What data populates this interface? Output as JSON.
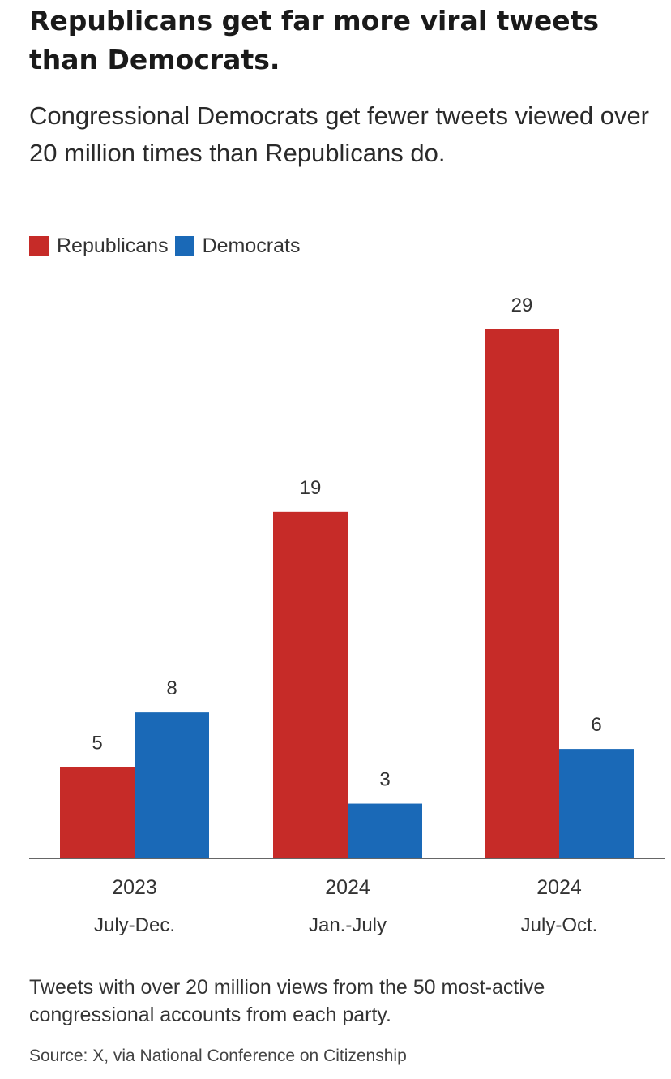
{
  "chart_data": {
    "type": "bar",
    "title": "Republicans get far more viral tweets than Democrats.",
    "subtitle": "Congressional Democrats get fewer tweets viewed over 20 million times than Republicans do.",
    "categories": [
      {
        "year": "2023",
        "period": "July-Dec."
      },
      {
        "year": "2024",
        "period": "Jan.-July"
      },
      {
        "year": "2024",
        "period": "July-Oct."
      }
    ],
    "series": [
      {
        "name": "Republicans",
        "color": "#c62b28",
        "values": [
          5,
          19,
          29
        ]
      },
      {
        "name": "Democrats",
        "color": "#1a69b7",
        "values": [
          8,
          3,
          6
        ]
      }
    ],
    "ylim": [
      0,
      29
    ],
    "grid": false,
    "legend_position": "top-left",
    "note": "Tweets with over 20 million views from the 50 most-active congressional accounts from each party.",
    "source": "Source: X, via National Conference on Citizenship"
  }
}
